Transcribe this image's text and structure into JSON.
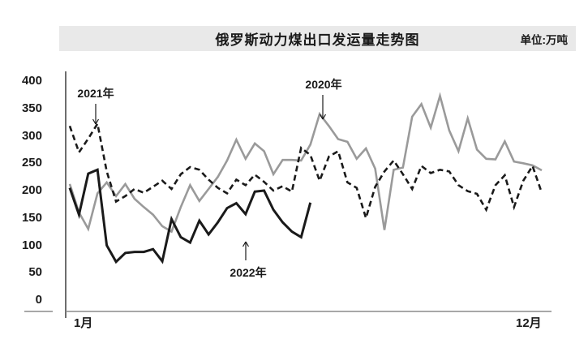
{
  "chart_data": {
    "type": "line",
    "title": "俄罗斯动力煤出口发运量走势图",
    "unit_label": "单位:万吨",
    "x_axis": {
      "start_label": "1月",
      "end_label": "12月",
      "weeks_per_year": 52,
      "grid": false
    },
    "y_axis": {
      "min": 0,
      "max": 400,
      "ticks": [
        400,
        350,
        300,
        250,
        200,
        150,
        100,
        50,
        0
      ]
    },
    "legend_style": "inline-annotations-with-arrows",
    "series": [
      {
        "name": "2020年",
        "color": "#9a9a9a",
        "style": "solid",
        "values": [
          212,
          160,
          130,
          195,
          215,
          190,
          212,
          185,
          170,
          156,
          135,
          125,
          170,
          210,
          181,
          203,
          225,
          255,
          293,
          258,
          286,
          272,
          230,
          256,
          256,
          255,
          284,
          340,
          318,
          294,
          289,
          258,
          277,
          240,
          128,
          238,
          242,
          335,
          358,
          315,
          373,
          310,
          272,
          332,
          275,
          258,
          257,
          290,
          253,
          250,
          246,
          237
        ]
      },
      {
        "name": "2021年",
        "color": "#1a1a1a",
        "style": "dashed",
        "values": [
          318,
          270,
          295,
          322,
          235,
          180,
          190,
          203,
          196,
          207,
          218,
          203,
          230,
          243,
          238,
          220,
          205,
          195,
          220,
          210,
          229,
          216,
          200,
          208,
          198,
          278,
          265,
          218,
          262,
          272,
          215,
          205,
          150,
          207,
          235,
          255,
          230,
          203,
          245,
          232,
          238,
          235,
          210,
          199,
          194,
          165,
          210,
          228,
          170,
          218,
          245,
          196
        ]
      },
      {
        "name": "2022年",
        "color": "#1a1a1a",
        "style": "solid-thick",
        "values": [
          205,
          156,
          231,
          238,
          100,
          70,
          86,
          88,
          88,
          93,
          71,
          148,
          115,
          105,
          145,
          120,
          142,
          168,
          177,
          157,
          198,
          200,
          165,
          142,
          125,
          115,
          178
        ]
      }
    ],
    "annotations": [
      {
        "label": "2020年",
        "points_to": "2020 series peak",
        "arrow": "down"
      },
      {
        "label": "2021年",
        "points_to": "2021 series start peak",
        "arrow": "down"
      },
      {
        "label": "2022年",
        "points_to": "2022 series line",
        "arrow": "up"
      }
    ]
  }
}
